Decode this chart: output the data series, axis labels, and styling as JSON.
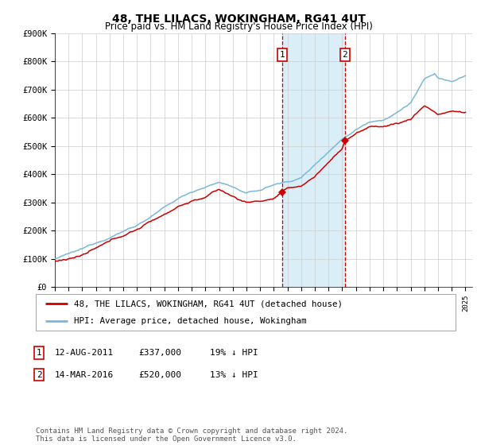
{
  "title": "48, THE LILACS, WOKINGHAM, RG41 4UT",
  "subtitle": "Price paid vs. HM Land Registry's House Price Index (HPI)",
  "ylim": [
    0,
    900000
  ],
  "yticks": [
    0,
    100000,
    200000,
    300000,
    400000,
    500000,
    600000,
    700000,
    800000,
    900000
  ],
  "ytick_labels": [
    "£0",
    "£100K",
    "£200K",
    "£300K",
    "£400K",
    "£500K",
    "£600K",
    "£700K",
    "£800K",
    "£900K"
  ],
  "xlim_start": 1995.0,
  "xlim_end": 2025.5,
  "transaction1_date": 2011.617,
  "transaction1_price": 337000,
  "transaction1_label": "1",
  "transaction2_date": 2016.204,
  "transaction2_price": 520000,
  "transaction2_label": "2",
  "hpi_color": "#7ab8d9",
  "price_color": "#cc0000",
  "shade_color": "#daeef8",
  "vline_color": "#cc0000",
  "marker_box_color": "#cc0000",
  "background_color": "#ffffff",
  "grid_color": "#cccccc",
  "legend1_label": "48, THE LILACS, WOKINGHAM, RG41 4UT (detached house)",
  "legend2_label": "HPI: Average price, detached house, Wokingham",
  "table_row1": [
    "1",
    "12-AUG-2011",
    "£337,000",
    "19% ↓ HPI"
  ],
  "table_row2": [
    "2",
    "14-MAR-2016",
    "£520,000",
    "13% ↓ HPI"
  ],
  "footer": "Contains HM Land Registry data © Crown copyright and database right 2024.\nThis data is licensed under the Open Government Licence v3.0."
}
